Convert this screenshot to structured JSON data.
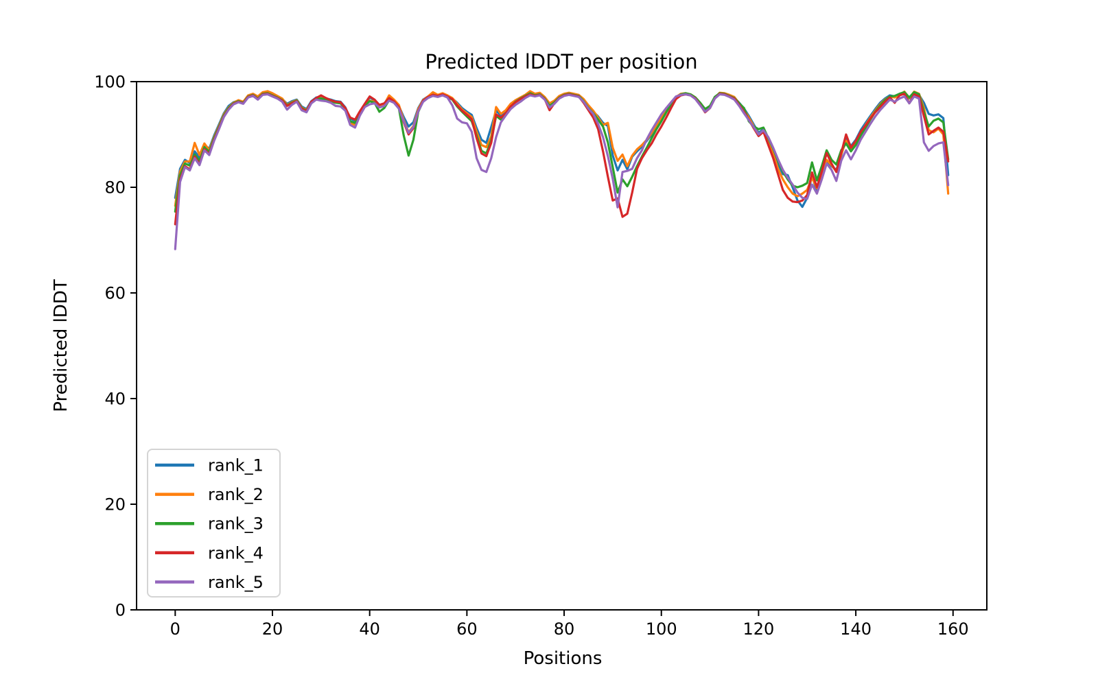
{
  "figure": {
    "background": "#ffffff",
    "text_color": "#000000",
    "spine_color": "#000000"
  },
  "chart_data": {
    "type": "line",
    "title": "Predicted lDDT per position",
    "xlabel": "Positions",
    "ylabel": "Predicted lDDT",
    "xlim": [
      -7.95,
      166.95
    ],
    "ylim": [
      0,
      100
    ],
    "xticks": [
      0,
      20,
      40,
      60,
      80,
      100,
      120,
      140,
      160
    ],
    "yticks": [
      0,
      20,
      40,
      60,
      80,
      100
    ],
    "x_start": 0,
    "x_step": 1,
    "grid": false,
    "legend_position": "lower-left",
    "series": [
      {
        "name": "rank_1",
        "color": "#1f77b4",
        "values": [
          78.0,
          83.5,
          85.2,
          84.6,
          86.8,
          85.6,
          88.0,
          87.3,
          89.8,
          91.9,
          94.0,
          95.4,
          96.1,
          96.4,
          96.1,
          97.3,
          97.6,
          97.0,
          97.8,
          97.9,
          97.5,
          97.1,
          96.7,
          95.8,
          96.3,
          96.6,
          95.3,
          94.8,
          96.3,
          97.0,
          97.1,
          96.8,
          96.6,
          96.3,
          96.2,
          95.1,
          93.0,
          92.6,
          94.2,
          95.7,
          97.0,
          96.5,
          95.5,
          95.8,
          96.8,
          96.4,
          95.4,
          93.3,
          91.5,
          92.3,
          95.0,
          96.6,
          97.2,
          97.6,
          97.4,
          97.7,
          97.3,
          96.8,
          96.0,
          95.0,
          94.3,
          93.7,
          91.2,
          89.0,
          88.4,
          91.4,
          94.5,
          93.6,
          94.3,
          95.5,
          96.3,
          96.9,
          97.4,
          97.7,
          97.5,
          97.7,
          96.9,
          95.7,
          96.3,
          97.2,
          97.6,
          97.8,
          97.6,
          97.4,
          96.5,
          95.3,
          94.3,
          93.4,
          92.2,
          91.6,
          86.0,
          83.2,
          85.2,
          83.4,
          85.8,
          86.8,
          87.7,
          88.8,
          90.0,
          91.5,
          92.9,
          94.5,
          95.8,
          97.0,
          97.6,
          97.7,
          97.5,
          96.9,
          95.8,
          94.6,
          95.3,
          97.0,
          97.8,
          97.7,
          97.4,
          97.0,
          96.0,
          94.9,
          93.5,
          91.9,
          90.3,
          91.0,
          89.0,
          87.0,
          84.5,
          82.5,
          82.3,
          80.0,
          77.5,
          76.3,
          78.0,
          82.3,
          79.0,
          82.0,
          85.0,
          84.0,
          83.3,
          86.0,
          89.3,
          87.8,
          89.0,
          90.8,
          92.2,
          93.5,
          94.8,
          96.0,
          96.8,
          97.4,
          97.2,
          97.6,
          97.9,
          96.8,
          97.9,
          97.5,
          96.0,
          93.9,
          93.6,
          93.8,
          93.1,
          82.3
        ]
      },
      {
        "name": "rank_2",
        "color": "#ff7f0e",
        "values": [
          76.5,
          83.0,
          84.9,
          84.9,
          88.4,
          86.1,
          88.3,
          87.0,
          89.5,
          91.6,
          93.8,
          95.1,
          96.0,
          96.5,
          96.2,
          97.4,
          97.7,
          97.2,
          98.0,
          98.2,
          97.8,
          97.3,
          96.8,
          95.6,
          96.1,
          96.5,
          95.1,
          94.6,
          96.1,
          96.8,
          96.9,
          96.7,
          96.4,
          96.1,
          96.0,
          94.9,
          92.2,
          91.8,
          93.8,
          95.4,
          96.4,
          96.2,
          95.3,
          95.7,
          97.4,
          96.6,
          95.6,
          92.7,
          90.4,
          91.6,
          94.8,
          96.5,
          97.2,
          98.0,
          97.5,
          97.8,
          97.4,
          96.9,
          95.8,
          94.7,
          94.0,
          93.3,
          90.5,
          88.0,
          87.6,
          89.6,
          95.2,
          93.9,
          94.6,
          95.8,
          96.5,
          97.0,
          97.5,
          98.2,
          97.7,
          97.9,
          97.1,
          95.9,
          96.4,
          97.3,
          97.7,
          97.9,
          97.7,
          97.5,
          96.7,
          95.5,
          94.5,
          93.2,
          91.8,
          92.2,
          87.5,
          85.0,
          86.2,
          84.0,
          86.0,
          87.2,
          88.0,
          89.0,
          90.3,
          91.8,
          93.2,
          94.8,
          96.0,
          97.1,
          97.7,
          97.8,
          97.6,
          97.0,
          95.9,
          94.4,
          95.1,
          96.9,
          97.9,
          97.8,
          97.5,
          97.1,
          95.9,
          94.7,
          93.2,
          91.6,
          90.0,
          90.8,
          88.6,
          86.3,
          83.5,
          81.5,
          80.0,
          78.8,
          78.3,
          78.8,
          79.5,
          81.8,
          79.8,
          82.3,
          85.2,
          84.2,
          83.0,
          86.2,
          88.8,
          87.2,
          88.5,
          90.3,
          91.8,
          93.2,
          94.5,
          95.7,
          96.6,
          97.2,
          97.0,
          97.5,
          98.1,
          96.9,
          98.1,
          97.7,
          95.0,
          90.8,
          90.4,
          91.1,
          90.0,
          78.8
        ]
      },
      {
        "name": "rank_3",
        "color": "#2ca02c",
        "values": [
          75.4,
          82.3,
          84.5,
          84.1,
          86.2,
          85.0,
          87.6,
          86.7,
          89.3,
          91.4,
          93.6,
          95.0,
          95.9,
          96.3,
          96.0,
          97.2,
          97.5,
          96.8,
          97.7,
          97.8,
          97.4,
          97.0,
          96.5,
          95.5,
          96.0,
          96.4,
          95.0,
          94.5,
          96.0,
          96.7,
          96.8,
          96.6,
          96.3,
          96.0,
          95.9,
          94.8,
          92.5,
          92.2,
          94.0,
          95.5,
          96.3,
          96.0,
          94.3,
          95.0,
          96.5,
          96.1,
          95.0,
          89.8,
          86.0,
          89.0,
          94.3,
          96.3,
          97.0,
          97.4,
          97.2,
          97.5,
          97.1,
          96.6,
          95.3,
          94.3,
          93.4,
          92.5,
          89.8,
          86.9,
          86.4,
          88.9,
          93.5,
          92.8,
          93.8,
          95.2,
          96.2,
          96.8,
          97.3,
          97.8,
          97.4,
          97.6,
          96.8,
          95.4,
          96.1,
          97.0,
          97.5,
          97.7,
          97.5,
          97.3,
          96.3,
          95.0,
          94.0,
          92.8,
          91.5,
          88.5,
          83.8,
          79.0,
          81.5,
          80.2,
          82.0,
          84.0,
          85.8,
          87.5,
          89.3,
          91.0,
          92.5,
          94.2,
          95.7,
          97.0,
          97.6,
          97.8,
          97.6,
          97.0,
          96.0,
          94.8,
          95.4,
          97.1,
          97.8,
          97.7,
          97.3,
          96.9,
          95.9,
          95.0,
          92.5,
          91.5,
          91.0,
          91.3,
          89.3,
          87.3,
          85.0,
          83.0,
          81.5,
          80.3,
          80.0,
          80.3,
          80.8,
          84.7,
          81.3,
          84.0,
          87.0,
          85.2,
          84.3,
          87.0,
          88.3,
          86.8,
          88.0,
          89.8,
          91.3,
          92.8,
          94.3,
          95.5,
          96.5,
          97.2,
          97.3,
          97.7,
          98.0,
          97.0,
          98.0,
          97.6,
          94.3,
          91.5,
          92.6,
          93.0,
          92.3,
          85.3
        ]
      },
      {
        "name": "rank_4",
        "color": "#d62728",
        "values": [
          73.0,
          81.5,
          84.0,
          83.4,
          85.8,
          84.4,
          87.2,
          86.3,
          89.0,
          91.2,
          93.4,
          94.8,
          95.8,
          96.2,
          95.9,
          97.1,
          97.4,
          96.7,
          97.6,
          97.7,
          97.3,
          96.9,
          96.4,
          95.4,
          95.9,
          96.3,
          94.9,
          94.4,
          96.2,
          96.9,
          97.4,
          96.9,
          96.5,
          96.2,
          96.1,
          95.0,
          93.2,
          92.8,
          94.4,
          95.8,
          97.2,
          96.6,
          95.6,
          95.9,
          96.9,
          96.3,
          95.2,
          92.3,
          90.0,
          91.2,
          94.5,
          96.4,
          97.1,
          97.5,
          97.3,
          97.6,
          97.2,
          96.7,
          95.5,
          94.5,
          93.7,
          92.9,
          89.3,
          86.4,
          85.9,
          88.4,
          93.8,
          93.2,
          94.0,
          95.3,
          96.1,
          96.7,
          97.2,
          97.6,
          97.3,
          97.5,
          96.7,
          94.6,
          95.9,
          96.9,
          97.4,
          97.6,
          97.4,
          97.2,
          96.0,
          94.6,
          93.2,
          91.0,
          86.8,
          82.0,
          77.5,
          77.9,
          74.4,
          75.0,
          79.0,
          83.5,
          85.5,
          87.0,
          88.3,
          90.0,
          91.5,
          93.2,
          95.0,
          96.7,
          97.4,
          97.6,
          97.4,
          96.8,
          95.6,
          94.2,
          95.0,
          96.8,
          97.7,
          97.6,
          97.2,
          96.8,
          95.6,
          94.3,
          92.8,
          91.2,
          89.7,
          90.5,
          88.0,
          85.5,
          82.5,
          79.5,
          78.0,
          77.3,
          77.2,
          77.5,
          78.5,
          82.8,
          80.0,
          83.0,
          86.5,
          84.5,
          82.9,
          86.5,
          90.0,
          87.5,
          88.8,
          90.5,
          91.7,
          93.0,
          94.2,
          95.2,
          96.2,
          97.0,
          96.0,
          97.4,
          97.7,
          95.9,
          97.6,
          97.2,
          93.5,
          90.0,
          90.7,
          91.3,
          90.5,
          84.9
        ]
      },
      {
        "name": "rank_5",
        "color": "#9467bd",
        "values": [
          68.3,
          81.0,
          83.8,
          83.2,
          85.5,
          84.2,
          87.0,
          86.1,
          88.8,
          91.0,
          93.3,
          94.7,
          95.7,
          96.1,
          95.8,
          97.0,
          97.3,
          96.6,
          97.5,
          97.6,
          97.2,
          96.8,
          96.2,
          94.7,
          95.6,
          96.2,
          94.6,
          94.2,
          95.9,
          96.6,
          96.4,
          96.3,
          96.0,
          95.4,
          95.3,
          94.5,
          91.8,
          91.3,
          93.6,
          95.2,
          95.7,
          95.9,
          95.1,
          95.4,
          96.4,
          96.0,
          94.9,
          92.5,
          90.3,
          91.4,
          94.4,
          96.2,
          96.9,
          97.3,
          97.1,
          97.4,
          97.0,
          95.5,
          93.0,
          92.3,
          92.1,
          90.5,
          85.5,
          83.3,
          82.9,
          85.5,
          89.5,
          92.3,
          93.6,
          94.8,
          95.6,
          96.2,
          96.9,
          97.4,
          97.2,
          97.4,
          96.6,
          95.1,
          95.8,
          96.8,
          97.3,
          97.5,
          97.3,
          97.1,
          96.2,
          94.9,
          93.9,
          92.0,
          89.5,
          85.9,
          81.6,
          76.2,
          82.9,
          83.1,
          83.5,
          85.5,
          87.0,
          89.1,
          90.8,
          92.3,
          93.8,
          95.0,
          96.1,
          97.2,
          97.5,
          97.6,
          97.4,
          96.7,
          95.5,
          94.3,
          95.0,
          96.8,
          97.6,
          97.5,
          97.1,
          96.6,
          95.4,
          94.0,
          92.7,
          91.4,
          90.0,
          90.8,
          89.5,
          87.5,
          85.3,
          83.3,
          81.8,
          80.5,
          79.0,
          78.0,
          77.8,
          80.5,
          78.8,
          81.5,
          84.5,
          83.3,
          81.2,
          85.0,
          87.0,
          85.3,
          87.0,
          89.0,
          90.5,
          92.0,
          93.4,
          94.6,
          95.6,
          96.6,
          96.2,
          96.8,
          97.2,
          95.9,
          97.2,
          96.8,
          88.5,
          86.9,
          87.8,
          88.3,
          88.5,
          80.4
        ]
      }
    ]
  }
}
